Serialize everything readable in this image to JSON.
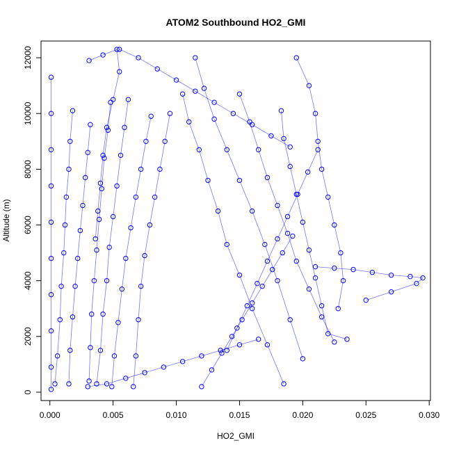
{
  "chart_data": {
    "type": "scatter",
    "title": "ATOM2 Southbound HO2_GMI",
    "xlabel": "HO2_GMI",
    "ylabel": "Altitude (m)",
    "xlim": [
      -0.0007,
      0.0301
    ],
    "ylim": [
      -300,
      12600
    ],
    "xticks": [
      0.0,
      0.005,
      0.01,
      0.015,
      0.02,
      0.025,
      0.03
    ],
    "xtick_labels": [
      "0.000",
      "0.005",
      "0.010",
      "0.015",
      "0.020",
      "0.025",
      "0.030"
    ],
    "yticks": [
      0,
      2000,
      4000,
      6000,
      8000,
      10000,
      12000
    ],
    "ytick_labels": [
      "0",
      "2000",
      "4000",
      "6000",
      "8000",
      "10000",
      "12000"
    ],
    "grid": false,
    "legend": "none",
    "marker": "open-circle",
    "color": "#0000ff",
    "series": [
      {
        "x": [
          0.0001,
          0.0001,
          0.0001,
          0.0001,
          0.0001,
          0.0001,
          0.0001,
          0.0001,
          0.0001,
          0.0001
        ],
        "y": [
          11300,
          10000,
          8700,
          7400,
          6100,
          4800,
          3500,
          2200,
          900,
          100
        ]
      },
      {
        "x": [
          0.0018,
          0.0016,
          0.0015,
          0.0013,
          0.0012,
          0.0011,
          0.0009,
          0.0008,
          0.0006,
          0.0004
        ],
        "y": [
          10100,
          9000,
          8000,
          7000,
          6000,
          5000,
          3800,
          2600,
          1300,
          300
        ]
      },
      {
        "x": [
          0.0032,
          0.003,
          0.0028,
          0.0026,
          0.0024,
          0.0022,
          0.002,
          0.0018,
          0.0016,
          0.0015
        ],
        "y": [
          9600,
          8600,
          7700,
          6700,
          5800,
          4800,
          3800,
          2700,
          1500,
          300
        ]
      },
      {
        "x": [
          0.0048,
          0.0046,
          0.0043,
          0.0041,
          0.0039,
          0.0037,
          0.0035,
          0.0033,
          0.0032,
          0.0031
        ],
        "y": [
          10400,
          9400,
          8400,
          7300,
          6200,
          5100,
          4000,
          2800,
          1600,
          400
        ]
      },
      {
        "x": [
          0.0062,
          0.0059,
          0.0056,
          0.0053,
          0.005,
          0.0047,
          0.0045,
          0.0042,
          0.004,
          0.0037
        ],
        "y": [
          10500,
          9500,
          8500,
          7400,
          6300,
          5200,
          4000,
          2800,
          1500,
          300
        ]
      },
      {
        "x": [
          0.008,
          0.0076,
          0.0072,
          0.0068,
          0.0064,
          0.006,
          0.0057,
          0.0054,
          0.0051,
          0.0049
        ],
        "y": [
          9900,
          9000,
          8000,
          7000,
          5900,
          4800,
          3700,
          2500,
          1300,
          200
        ]
      },
      {
        "x": [
          0.0095,
          0.0091,
          0.0087,
          0.0083,
          0.0079,
          0.0075,
          0.0072,
          0.007,
          0.0068,
          0.0066
        ],
        "y": [
          10000,
          9000,
          8000,
          7000,
          6000,
          4900,
          3800,
          2600,
          1300,
          200
        ]
      },
      {
        "x": [
          0.0105,
          0.011,
          0.0118,
          0.0125,
          0.0133,
          0.014,
          0.015,
          0.016,
          0.0172,
          0.0185
        ],
        "y": [
          10700,
          9700,
          8700,
          7600,
          6500,
          5300,
          4200,
          3000,
          1700,
          300
        ]
      },
      {
        "x": [
          0.0115,
          0.0122,
          0.013,
          0.014,
          0.015,
          0.016,
          0.017,
          0.018,
          0.019,
          0.02
        ],
        "y": [
          12000,
          10900,
          9800,
          8700,
          7600,
          6500,
          5300,
          4000,
          2600,
          1200
        ]
      },
      {
        "x": [
          0.0195,
          0.0205,
          0.021,
          0.0212,
          0.0215,
          0.022,
          0.0225,
          0.023,
          0.0232,
          0.0228
        ],
        "y": [
          12000,
          11000,
          10000,
          9000,
          8000,
          7000,
          6000,
          5000,
          4000,
          3000
        ]
      },
      {
        "x": [
          0.015,
          0.0158,
          0.0165,
          0.0172,
          0.018,
          0.0188,
          0.0195,
          0.0205,
          0.0215,
          0.0225
        ],
        "y": [
          10700,
          9700,
          8700,
          7700,
          6700,
          5700,
          4700,
          3700,
          2700,
          1800
        ]
      },
      {
        "x": [
          0.0183,
          0.0185,
          0.019,
          0.0195,
          0.02,
          0.0205,
          0.021,
          0.0215,
          0.022,
          0.0235
        ],
        "y": [
          10100,
          9100,
          8100,
          7100,
          6100,
          5100,
          4100,
          3100,
          2100,
          1900
        ]
      },
      {
        "x": [
          0.021,
          0.0225,
          0.024,
          0.0255,
          0.027,
          0.0285,
          0.0295,
          0.029,
          0.027,
          0.025
        ],
        "y": [
          4500,
          4450,
          4400,
          4300,
          4200,
          4150,
          4100,
          3900,
          3600,
          3300
        ]
      },
      {
        "x": [
          0.003,
          0.0045,
          0.006,
          0.0075,
          0.009,
          0.0105,
          0.012,
          0.0135,
          0.015,
          0.0165
        ],
        "y": [
          200,
          300,
          500,
          700,
          900,
          1100,
          1300,
          1500,
          1700,
          1900
        ]
      },
      {
        "x": [
          0.012,
          0.0128,
          0.0136,
          0.0144,
          0.0152,
          0.016,
          0.0168,
          0.0176,
          0.0184,
          0.0192
        ],
        "y": [
          200,
          800,
          1400,
          2000,
          2600,
          3200,
          3800,
          4400,
          5000,
          5600
        ]
      },
      {
        "x": [
          0.0031,
          0.0042,
          0.0053,
          0.0055,
          0.005,
          0.0045,
          0.0042,
          0.004,
          0.0038,
          0.0036
        ],
        "y": [
          11900,
          12100,
          12300,
          11500,
          10500,
          9500,
          8500,
          7500,
          6500,
          5500
        ]
      },
      {
        "x": [
          0.0055,
          0.007,
          0.0085,
          0.01,
          0.0115,
          0.013,
          0.0145,
          0.016,
          0.0175,
          0.019
        ],
        "y": [
          12300,
          12000,
          11600,
          11200,
          10800,
          10400,
          10000,
          9600,
          9200,
          8800
        ]
      },
      {
        "x": [
          0.014,
          0.0148,
          0.0156,
          0.0164,
          0.0172,
          0.018,
          0.0188,
          0.0196,
          0.0204,
          0.0212
        ],
        "y": [
          1500,
          2300,
          3100,
          3900,
          4700,
          5500,
          6300,
          7100,
          7900,
          8700
        ]
      }
    ]
  }
}
